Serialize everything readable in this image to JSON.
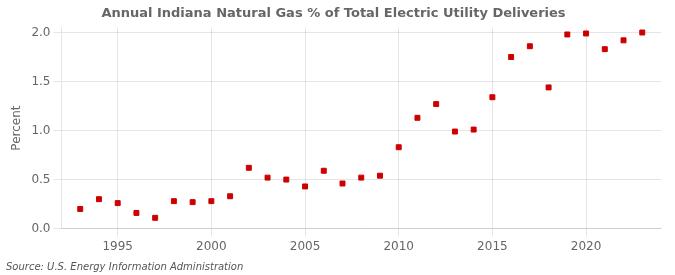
{
  "chart_data": {
    "type": "scatter",
    "title": "Annual Indiana Natural Gas % of Total Electric Utility Deliveries",
    "y_label": "Percent",
    "annotation": "Source: U.S. Energy Information Administration",
    "x": [
      1993,
      1994,
      1995,
      1996,
      1997,
      1998,
      1999,
      2000,
      2001,
      2002,
      2003,
      2004,
      2005,
      2006,
      2007,
      2008,
      2009,
      2010,
      2011,
      2012,
      2013,
      2014,
      2015,
      2016,
      2017,
      2018,
      2019,
      2020,
      2021,
      2022,
      2023
    ],
    "values": [
      0.2,
      0.3,
      0.26,
      0.16,
      0.11,
      0.28,
      0.27,
      0.28,
      0.33,
      0.62,
      0.52,
      0.5,
      0.43,
      0.59,
      0.46,
      0.52,
      0.54,
      0.83,
      1.13,
      1.27,
      0.99,
      1.01,
      1.34,
      1.75,
      1.86,
      1.44,
      1.98,
      1.99,
      1.83,
      1.92,
      2.0
    ],
    "color": "#cc0000",
    "marker": "square",
    "xlim": [
      1992,
      2024
    ],
    "xticks": [
      1995,
      2000,
      2005,
      2010,
      2015,
      2020
    ],
    "ylim": [
      0.0,
      2.05
    ],
    "yticks": [
      {
        "value": 0.0,
        "label": "0.0"
      },
      0.5,
      {
        "value": 1.0,
        "label": "1.0"
      },
      1.5,
      {
        "value": 2.0,
        "label": "2.0"
      }
    ],
    "grid": true
  }
}
